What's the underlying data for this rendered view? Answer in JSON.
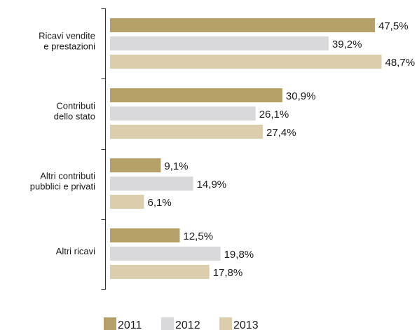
{
  "chart_data": {
    "type": "bar",
    "orientation": "horizontal",
    "categories": [
      [
        "Ricavi vendite",
        "e prestazioni"
      ],
      [
        "Contributi",
        "dello stato"
      ],
      [
        "Altri contributi",
        "pubblici e privati"
      ],
      [
        "Altri ricavi"
      ]
    ],
    "series": [
      {
        "name": "2011",
        "values": [
          47.5,
          30.9,
          9.1,
          12.5
        ],
        "labels": [
          "47,5%",
          "30,9%",
          "9,1%",
          "12,5%"
        ],
        "color": "#b5a06a"
      },
      {
        "name": "2012",
        "values": [
          39.2,
          26.1,
          14.9,
          19.8
        ],
        "labels": [
          "39,2%",
          "26,1%",
          "14,9%",
          "19,8%"
        ],
        "color": "#d9d9db"
      },
      {
        "name": "2013",
        "values": [
          48.7,
          27.4,
          6.1,
          17.8
        ],
        "labels": [
          "48,7%",
          "27,4%",
          "6,1%",
          "17,8%"
        ],
        "color": "#dccdad"
      }
    ],
    "xlim": [
      0,
      50
    ],
    "unit": "%",
    "legend_position": "bottom",
    "grid": false
  }
}
